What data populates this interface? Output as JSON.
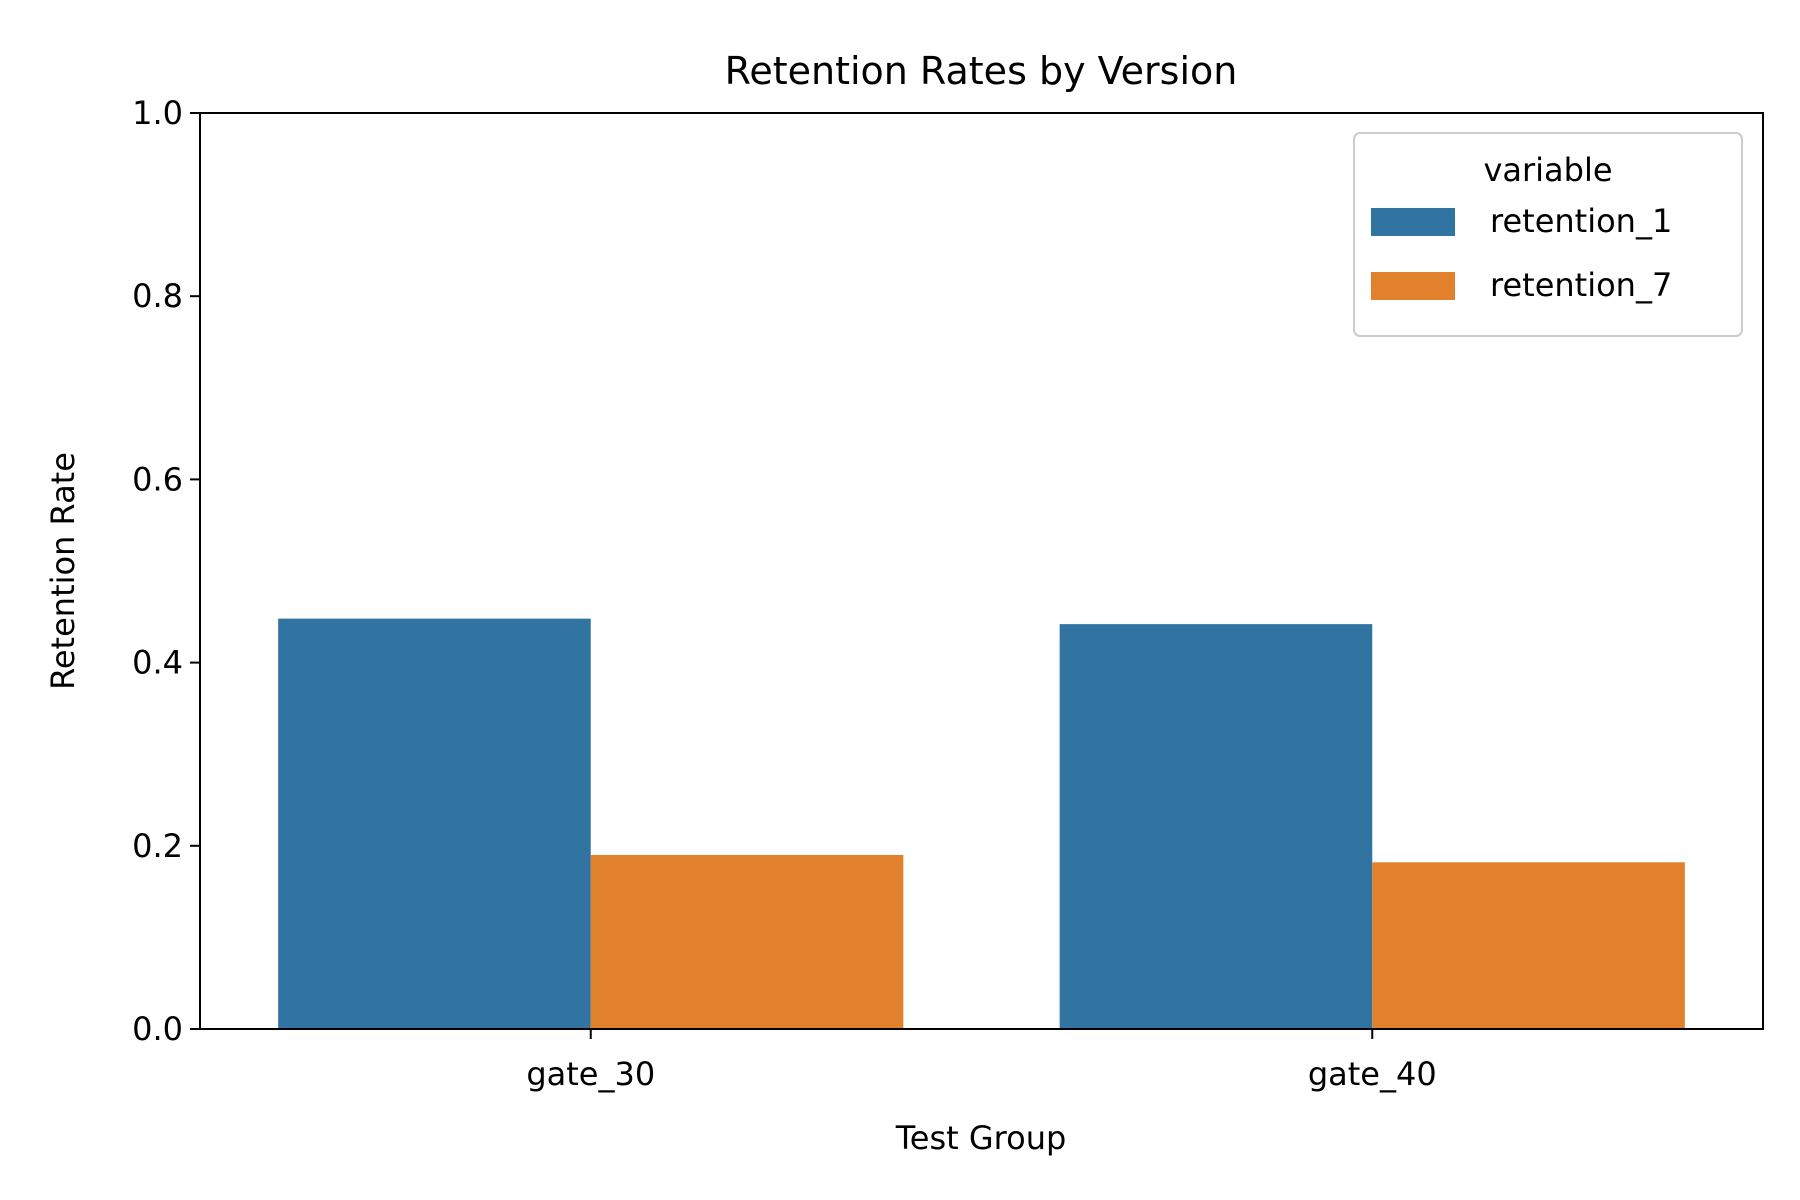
{
  "chart_data": {
    "type": "bar",
    "title": "Retention Rates by Version",
    "xlabel": "Test Group",
    "ylabel": "Retention Rate",
    "categories": [
      "gate_30",
      "gate_40"
    ],
    "ylim": [
      0,
      1.0
    ],
    "yticks": [
      "0.0",
      "0.2",
      "0.4",
      "0.6",
      "0.8",
      "1.0"
    ],
    "grid": false,
    "legend": {
      "title": "variable",
      "placement": "top-right"
    },
    "series": [
      {
        "name": "retention_1",
        "color": "#3274a1",
        "values": [
          0.448,
          0.442
        ]
      },
      {
        "name": "retention_7",
        "color": "#e1812c",
        "values": [
          0.19,
          0.182
        ]
      }
    ]
  }
}
